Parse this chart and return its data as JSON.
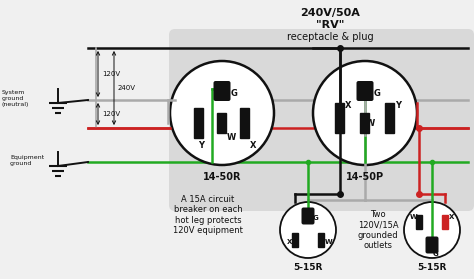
{
  "bg_color": "#f0f0f0",
  "white": "#ffffff",
  "gray_box_color": "#d9d9d9",
  "black": "#111111",
  "red": "#cc2222",
  "green": "#22aa22",
  "gray_wire": "#aaaaaa",
  "title_line1": "240V/50A",
  "title_line2": "\"RV\"",
  "title_line3": "receptacle & plug",
  "label_14_50R": "14-50R",
  "label_14_50P": "14-50P",
  "label_5_15R": "5-15R",
  "label_system_ground": "System\nground\n(neutral)",
  "label_equipment_ground": "Equipment\nground",
  "label_120V": "120V",
  "label_240V": "240V",
  "label_circuit_breaker": "A 15A circuit\nbreaker on each\nhot leg protects\n120V equipment",
  "label_two_outlets": "Two\n120V/15A\ngrounded\noutlets"
}
